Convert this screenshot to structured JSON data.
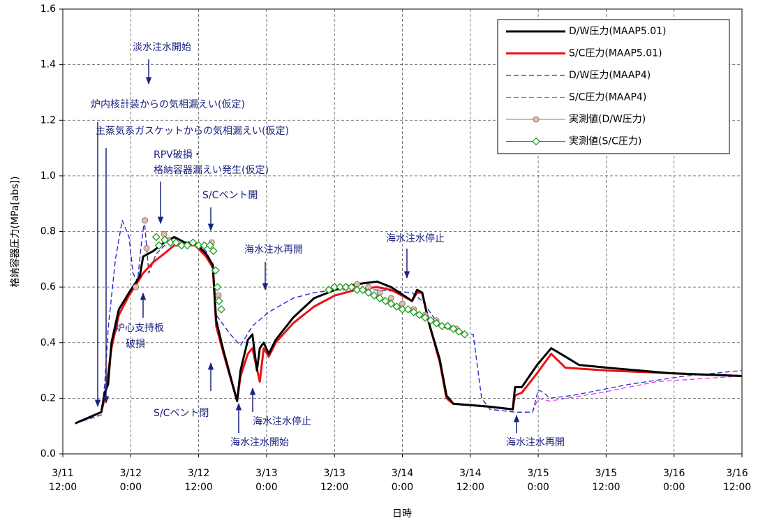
{
  "chart_data": {
    "type": "line",
    "ylabel": "格納容器圧力(MPa[abs])",
    "xlabel": "日時",
    "xlim": [
      0,
      120
    ],
    "ylim": [
      0,
      1.6
    ],
    "xticks": [
      {
        "value": 0,
        "label": "3/11\n12:00"
      },
      {
        "value": 12,
        "label": "3/12\n0:00"
      },
      {
        "value": 24,
        "label": "3/12\n12:00"
      },
      {
        "value": 36,
        "label": "3/13\n0:00"
      },
      {
        "value": 48,
        "label": "3/13\n12:00"
      },
      {
        "value": 60,
        "label": "3/14\n0:00"
      },
      {
        "value": 72,
        "label": "3/14\n12:00"
      },
      {
        "value": 84,
        "label": "3/15\n0:00"
      },
      {
        "value": 96,
        "label": "3/15\n12:00"
      },
      {
        "value": 108,
        "label": "3/16\n0:00"
      },
      {
        "value": 120,
        "label": "3/16\n12:00"
      }
    ],
    "yticks": [
      {
        "value": 0,
        "label": "0.0"
      },
      0.2,
      0.4,
      0.6,
      0.8,
      {
        "value": 1,
        "label": "1.0"
      },
      1.2,
      1.4,
      1.6
    ],
    "grid": true,
    "legend": "upper right",
    "series": [
      {
        "name": "D/W圧力(MAAP5.01)",
        "color": "#000000",
        "width": 3,
        "dash": false,
        "x": [
          2.2,
          6.8,
          7.4,
          8,
          8.6,
          9.9,
          11.7,
          13,
          13.6,
          14.2,
          16,
          17.9,
          19.7,
          21.6,
          23.4,
          25.3,
          26.5,
          27.1,
          28.4,
          29.6,
          30.8,
          31.4,
          32.7,
          33.5,
          34.3,
          34.8,
          35.5,
          36.4,
          37.6,
          40.7,
          44.4,
          48.1,
          51.8,
          55.5,
          58,
          61.7,
          62.6,
          63.5,
          64.7,
          66.6,
          67.8,
          69,
          75.2,
          79.5,
          79.9,
          81.1,
          83.8,
          86.3,
          88.8,
          91.2,
          96.2,
          107.3,
          120
        ],
        "values": [
          0.11,
          0.15,
          0.22,
          0.25,
          0.4,
          0.52,
          0.58,
          0.62,
          0.64,
          0.71,
          0.73,
          0.76,
          0.78,
          0.76,
          0.76,
          0.72,
          0.68,
          0.48,
          0.37,
          0.28,
          0.19,
          0.3,
          0.41,
          0.43,
          0.3,
          0.38,
          0.4,
          0.36,
          0.41,
          0.49,
          0.56,
          0.59,
          0.61,
          0.62,
          0.6,
          0.55,
          0.59,
          0.58,
          0.47,
          0.34,
          0.21,
          0.18,
          0.17,
          0.16,
          0.24,
          0.24,
          0.32,
          0.38,
          0.35,
          0.32,
          0.31,
          0.29,
          0.28
        ]
      },
      {
        "name": "S/C圧力(MAAP5.01)",
        "color": "#ee1111",
        "width": 3,
        "dash": false,
        "x": [
          2.2,
          6.8,
          7.4,
          8.6,
          9.9,
          11.7,
          13.6,
          14.2,
          16,
          17.9,
          19.7,
          21.6,
          23.4,
          25.3,
          26.5,
          27.1,
          28.4,
          30.8,
          31.4,
          32.7,
          33.5,
          34.8,
          35.5,
          36.4,
          37.6,
          40.7,
          44.4,
          48.1,
          51.8,
          55.5,
          58,
          61.7,
          62.6,
          63.5,
          64.7,
          66.6,
          67.8,
          69,
          75.2,
          79.5,
          79.9,
          81.1,
          83.8,
          86.3,
          88.8,
          96.2,
          107.3,
          120
        ],
        "values": [
          0.11,
          0.15,
          0.2,
          0.38,
          0.5,
          0.57,
          0.63,
          0.65,
          0.69,
          0.72,
          0.75,
          0.75,
          0.75,
          0.71,
          0.67,
          0.46,
          0.36,
          0.19,
          0.28,
          0.36,
          0.38,
          0.26,
          0.38,
          0.35,
          0.4,
          0.47,
          0.53,
          0.57,
          0.59,
          0.6,
          0.59,
          0.55,
          0.58,
          0.58,
          0.47,
          0.33,
          0.2,
          0.18,
          0.17,
          0.16,
          0.21,
          0.22,
          0.29,
          0.36,
          0.31,
          0.3,
          0.29,
          0.28
        ]
      },
      {
        "name": "D/W圧力(MAAP4)",
        "color": "#1a2fd0",
        "width": 1.3,
        "dash": true,
        "x": [
          2.2,
          6.8,
          7.4,
          8,
          9.3,
          10.5,
          11.7,
          12.4,
          13.2,
          13.9,
          14.4,
          15.2,
          16.5,
          18.5,
          21.6,
          24,
          25.3,
          26.5,
          27.1,
          29.6,
          31.4,
          33.5,
          36.4,
          40.7,
          44.4,
          48.1,
          55.5,
          61.7,
          63.5,
          66.6,
          71,
          72.5,
          74,
          75.5,
          80,
          83,
          84,
          85,
          86,
          90,
          100,
          110,
          120
        ],
        "values": [
          0.11,
          0.14,
          0.25,
          0.45,
          0.7,
          0.84,
          0.78,
          0.65,
          0.62,
          0.76,
          0.84,
          0.65,
          0.72,
          0.76,
          0.76,
          0.75,
          0.73,
          0.68,
          0.5,
          0.43,
          0.39,
          0.46,
          0.51,
          0.56,
          0.58,
          0.59,
          0.59,
          0.58,
          0.55,
          0.46,
          0.43,
          0.43,
          0.2,
          0.16,
          0.15,
          0.15,
          0.23,
          0.22,
          0.2,
          0.21,
          0.25,
          0.28,
          0.3
        ]
      },
      {
        "name": "S/C圧力(MAAP4)",
        "color": "#e040e0",
        "width": 1.3,
        "dash": true,
        "x": [
          2.2,
          6.8,
          7.4,
          8,
          9.3,
          10.5,
          11.7,
          12.4,
          13.2,
          13.9,
          14.4,
          15.2,
          16.5,
          18.5,
          21.6,
          24,
          25.3,
          26.5,
          27.1,
          29.6,
          31.4,
          33.5,
          36.4,
          40.7,
          44.4,
          48.1,
          55.5,
          61.7,
          63.5,
          66.6,
          71,
          72.5,
          74,
          75.5,
          80,
          83,
          84,
          86,
          95,
          105,
          120
        ],
        "values": [
          0.11,
          0.14,
          0.25,
          0.45,
          0.7,
          0.84,
          0.78,
          0.65,
          0.62,
          0.76,
          0.84,
          0.65,
          0.72,
          0.76,
          0.76,
          0.75,
          0.73,
          0.68,
          0.5,
          0.43,
          0.39,
          0.46,
          0.51,
          0.56,
          0.58,
          0.59,
          0.59,
          0.58,
          0.55,
          0.46,
          0.43,
          0.43,
          0.2,
          0.16,
          0.15,
          0.15,
          0.2,
          0.19,
          0.22,
          0.26,
          0.28
        ]
      },
      {
        "name": "実測値(D/W圧力)",
        "color": "#a07060",
        "marker": "circle",
        "fill": "#dcc0b8",
        "x": [
          12.9,
          14.5,
          14.8,
          17.9,
          18.6,
          26.3,
          26.9,
          27.5,
          48,
          50,
          52,
          54,
          56,
          58,
          60,
          62,
          64,
          66,
          68,
          69.5
        ],
        "values": [
          0.6,
          0.84,
          0.74,
          0.79,
          0.77,
          0.76,
          0.66,
          0.57,
          0.6,
          0.6,
          0.61,
          0.6,
          0.58,
          0.56,
          0.54,
          0.52,
          0.5,
          0.48,
          0.46,
          0.45
        ]
      },
      {
        "name": "実測値(S/C圧力)",
        "color": "#1e9a1e",
        "marker": "diamond",
        "fill": "#ffffff",
        "x": [
          16.5,
          17,
          18,
          19,
          20,
          21,
          22,
          23,
          24,
          25,
          26,
          26.6,
          27,
          27.3,
          27.6,
          28,
          47,
          48,
          49,
          50,
          51,
          52,
          53,
          54,
          55,
          56,
          57,
          58,
          59,
          60,
          61,
          62,
          63,
          64,
          65,
          66,
          67,
          68,
          69,
          70,
          71
        ],
        "values": [
          0.78,
          0.75,
          0.77,
          0.76,
          0.76,
          0.75,
          0.75,
          0.76,
          0.75,
          0.75,
          0.75,
          0.73,
          0.66,
          0.6,
          0.55,
          0.52,
          0.59,
          0.6,
          0.6,
          0.6,
          0.6,
          0.59,
          0.59,
          0.58,
          0.57,
          0.56,
          0.55,
          0.54,
          0.53,
          0.52,
          0.52,
          0.51,
          0.5,
          0.49,
          0.48,
          0.47,
          0.46,
          0.46,
          0.45,
          0.44,
          0.43
        ]
      }
    ],
    "annotations": [
      "淡水注水開始",
      "炉内核計装からの気相漏えい(仮定)",
      "主蒸気系ガスケットからの気相漏えい(仮定)",
      "RPV破損・",
      "格納容器漏えい発生(仮定)",
      "S/Cベント開",
      "海水注水再開",
      "海水注水停止",
      "炉心支持板",
      "破損",
      "S/Cベント閉",
      "海水注水開始",
      "海水注水停止",
      "海水注水再開"
    ]
  }
}
